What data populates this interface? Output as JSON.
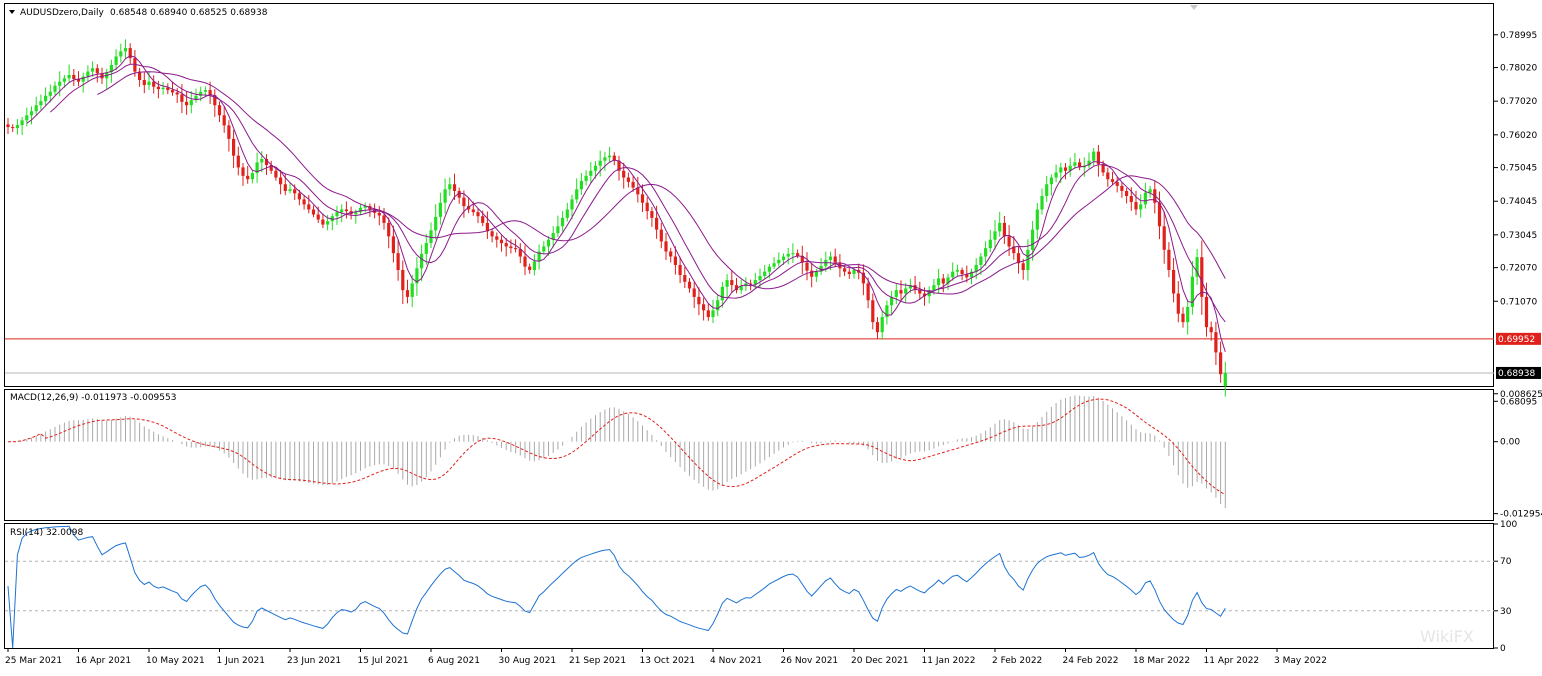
{
  "header": {
    "symbol_label": "AUDUSDzero,Daily",
    "ohlc_text": "0.68548 0.68940 0.68525 0.68938"
  },
  "watermark": "WikiFX",
  "chart_data": [
    {
      "type": "candlestick",
      "panel": "price",
      "symbol": "AUDUSDzero",
      "timeframe": "Daily",
      "ohlc": {
        "open": 0.68548,
        "high": 0.6894,
        "low": 0.68525,
        "close": 0.68938
      },
      "ylim": [
        0.6855,
        0.7991
      ],
      "y_ticks": [
        "0.78995",
        "0.78020",
        "0.77020",
        "0.76020",
        "0.75045",
        "0.74045",
        "0.73045",
        "0.72070",
        "0.71070",
        "0.69952",
        "0.68938",
        "0.68095"
      ],
      "x_ticks": [
        "25 Mar 2021",
        "16 Apr 2021",
        "10 May 2021",
        "1 Jun 2021",
        "23 Jun 2021",
        "15 Jul 2021",
        "6 Aug 2021",
        "30 Aug 2021",
        "21 Sep 2021",
        "13 Oct 2021",
        "4 Nov 2021",
        "26 Nov 2021",
        "20 Dec 2021",
        "11 Jan 2022",
        "2 Feb 2022",
        "24 Feb 2022",
        "18 Mar 2022",
        "11 Apr 2022",
        "3 May 2022"
      ],
      "horizontal_line": {
        "value": 0.69952,
        "label": "0.69952",
        "color": "#e0201b"
      },
      "current_price": {
        "value": 0.68938,
        "label": "0.68938"
      },
      "up_color": "#22dd22",
      "down_color": "#e0201b",
      "ma_color": "#8b1a8b",
      "closes": [
        0.7625,
        0.7622,
        0.7631,
        0.7645,
        0.766,
        0.7672,
        0.769,
        0.7702,
        0.7718,
        0.773,
        0.7748,
        0.776,
        0.777,
        0.778,
        0.7768,
        0.776,
        0.7775,
        0.779,
        0.78,
        0.7785,
        0.777,
        0.7788,
        0.781,
        0.7835,
        0.785,
        0.786,
        0.783,
        0.779,
        0.7765,
        0.775,
        0.776,
        0.7745,
        0.7738,
        0.7742,
        0.7735,
        0.7728,
        0.7722,
        0.77,
        0.769,
        0.7705,
        0.7718,
        0.773,
        0.7735,
        0.772,
        0.769,
        0.766,
        0.763,
        0.759,
        0.754,
        0.7505,
        0.748,
        0.747,
        0.7488,
        0.752,
        0.753,
        0.7512,
        0.7495,
        0.7475,
        0.7455,
        0.7435,
        0.744,
        0.7428,
        0.741,
        0.7395,
        0.738,
        0.7365,
        0.735,
        0.7335,
        0.7345,
        0.736,
        0.7372,
        0.738,
        0.7375,
        0.7366,
        0.7372,
        0.7385,
        0.739,
        0.738,
        0.737,
        0.7362,
        0.734,
        0.73,
        0.725,
        0.72,
        0.714,
        0.712,
        0.716,
        0.7205,
        0.7248,
        0.728,
        0.7318,
        0.7358,
        0.74,
        0.744,
        0.7455,
        0.7435,
        0.7415,
        0.739,
        0.738,
        0.7372,
        0.736,
        0.734,
        0.7315,
        0.73,
        0.729,
        0.728,
        0.727,
        0.7265,
        0.7262,
        0.724,
        0.721,
        0.72,
        0.7225,
        0.7255,
        0.727,
        0.729,
        0.731,
        0.733,
        0.7355,
        0.738,
        0.741,
        0.744,
        0.7465,
        0.748,
        0.7495,
        0.751,
        0.7525,
        0.7535,
        0.754,
        0.7525,
        0.7495,
        0.7475,
        0.7462,
        0.7445,
        0.7425,
        0.74,
        0.7375,
        0.7355,
        0.732,
        0.7285,
        0.7255,
        0.724,
        0.7215,
        0.7185,
        0.7165,
        0.7145,
        0.712,
        0.7098,
        0.708,
        0.706,
        0.708,
        0.711,
        0.715,
        0.717,
        0.7155,
        0.714,
        0.7152,
        0.716,
        0.7158,
        0.717,
        0.7182,
        0.7195,
        0.721,
        0.722,
        0.723,
        0.724,
        0.7248,
        0.725,
        0.7242,
        0.7222,
        0.7198,
        0.718,
        0.7195,
        0.7212,
        0.723,
        0.724,
        0.7222,
        0.7205,
        0.7195,
        0.7188,
        0.72,
        0.7192,
        0.716,
        0.711,
        0.7045,
        0.7015,
        0.706,
        0.7095,
        0.712,
        0.714,
        0.713,
        0.7145,
        0.7155,
        0.7142,
        0.713,
        0.7122,
        0.714,
        0.7155,
        0.7175,
        0.716,
        0.7178,
        0.7195,
        0.72,
        0.7188,
        0.7178,
        0.7195,
        0.7215,
        0.724,
        0.7265,
        0.729,
        0.7315,
        0.734,
        0.73,
        0.727,
        0.725,
        0.722,
        0.72,
        0.726,
        0.732,
        0.738,
        0.742,
        0.7455,
        0.7475,
        0.749,
        0.7505,
        0.7495,
        0.751,
        0.752,
        0.7505,
        0.751,
        0.7525,
        0.7552,
        0.7515,
        0.749,
        0.747,
        0.7462,
        0.745,
        0.7435,
        0.742,
        0.7402,
        0.738,
        0.7395,
        0.743,
        0.744,
        0.74,
        0.733,
        0.726,
        0.72,
        0.713,
        0.707,
        0.7045,
        0.709,
        0.718,
        0.7238,
        0.712,
        0.703,
        0.7015,
        0.6955,
        0.689,
        0.6894
      ],
      "ma_periods": [
        5,
        10,
        20
      ]
    },
    {
      "type": "macd",
      "panel": "indicator",
      "label": "MACD(12,26,9) -0.011973 -0.009553",
      "params": [
        12,
        26,
        9
      ],
      "main": -0.011973,
      "signal": -0.009553,
      "ylim": [
        -0.0141,
        0.0093
      ],
      "y_ticks": [
        "0.008625",
        "0.00",
        "-0.012954"
      ],
      "histogram_color": "#a9a9a9",
      "signal_color": "#e0201b"
    },
    {
      "type": "rsi",
      "panel": "indicator",
      "label": "RSI(14) 32.0098",
      "period": 14,
      "value": 32.0098,
      "ylim": [
        0,
        100
      ],
      "y_ticks": [
        "100",
        "70",
        "30",
        "0"
      ],
      "levels": [
        70,
        30
      ],
      "line_color": "#1e73d2"
    }
  ]
}
